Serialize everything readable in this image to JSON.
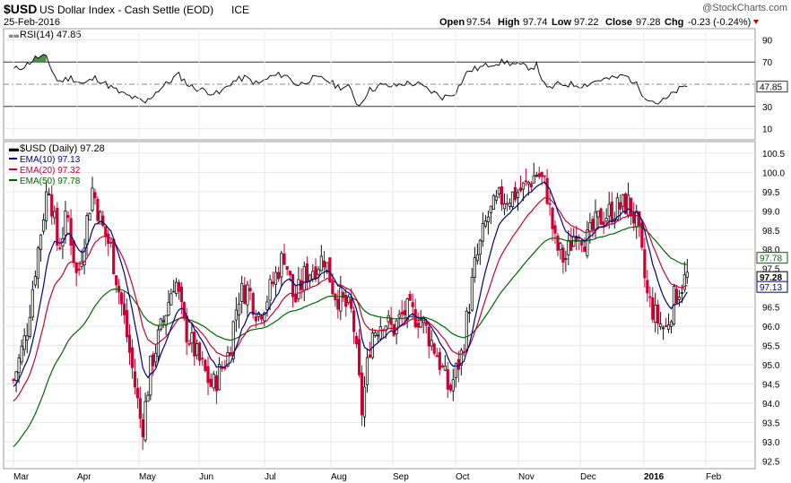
{
  "header": {
    "symbol": "$USD",
    "name": "US Dollar Index - Cash Settle (EOD)",
    "exchange": "ICE",
    "date": "25-Feb-2016",
    "watermark": "@StockCharts.com",
    "open_label": "Open",
    "open": "97.54",
    "high_label": "High",
    "high": "97.74",
    "low_label": "Low",
    "low": "97.22",
    "close_label": "Close",
    "close": "97.28",
    "chg_label": "Chg",
    "chg": "-0.23 (-0.24%)",
    "chg_color": "#cc0000"
  },
  "rsi_panel": {
    "label": "RSI(14) 47.85",
    "current": 47.85,
    "current_label": "47.85",
    "levels": [
      70,
      30
    ],
    "midline": 50,
    "ticks": [
      "90",
      "70",
      "50",
      "30",
      "10"
    ]
  },
  "price_panel": {
    "label": "$USD (Daily) 97.28",
    "legend": [
      {
        "name": "EMA(10) 97.13",
        "color": "#000080"
      },
      {
        "name": "EMA(20) 97.32",
        "color": "#cc0033"
      },
      {
        "name": "EMA(50) 97.78",
        "color": "#006600"
      }
    ],
    "markers": [
      {
        "label": "97.78",
        "value": 97.78,
        "color": "#006600"
      },
      {
        "label": "97.28",
        "value": 97.28,
        "color": "#000000"
      },
      {
        "label": "97.13",
        "value": 97.13,
        "color": "#000080"
      }
    ],
    "y_ticks": [
      "100.5",
      "100.0",
      "99.5",
      "99.0",
      "98.5",
      "98.0",
      "97.5",
      "97.0",
      "96.5",
      "96.0",
      "95.5",
      "95.0",
      "94.5",
      "94.0",
      "93.5",
      "93.0",
      "92.5"
    ]
  },
  "x_axis": {
    "labels": [
      "Mar",
      "Apr",
      "May",
      "Jun",
      "Jul",
      "Aug",
      "Sep",
      "Oct",
      "Nov",
      "Dec",
      "2016",
      "Feb"
    ]
  },
  "chart_data": {
    "type": "candlestick",
    "y_range": [
      92.3,
      100.8
    ],
    "rsi_range": [
      0,
      100
    ],
    "months": [
      "Mar",
      "Apr",
      "May",
      "Jun",
      "Jul",
      "Aug",
      "Sep",
      "Oct",
      "Nov",
      "Dec",
      "2016",
      "Feb"
    ],
    "close_path": [
      {
        "m": 0.0,
        "v": 94.6
      },
      {
        "m": 0.2,
        "v": 95.8
      },
      {
        "m": 0.35,
        "v": 97.6
      },
      {
        "m": 0.55,
        "v": 99.8
      },
      {
        "m": 0.7,
        "v": 98.0
      },
      {
        "m": 0.85,
        "v": 98.9
      },
      {
        "m": 1.0,
        "v": 97.2
      },
      {
        "m": 1.1,
        "v": 98.2
      },
      {
        "m": 1.25,
        "v": 99.6
      },
      {
        "m": 1.4,
        "v": 98.6
      },
      {
        "m": 1.55,
        "v": 98.0
      },
      {
        "m": 1.75,
        "v": 96.3
      },
      {
        "m": 1.9,
        "v": 94.8
      },
      {
        "m": 2.05,
        "v": 93.3
      },
      {
        "m": 2.2,
        "v": 95.0
      },
      {
        "m": 2.45,
        "v": 96.4
      },
      {
        "m": 2.6,
        "v": 97.3
      },
      {
        "m": 2.75,
        "v": 96.0
      },
      {
        "m": 3.0,
        "v": 95.1
      },
      {
        "m": 3.2,
        "v": 94.4
      },
      {
        "m": 3.45,
        "v": 95.3
      },
      {
        "m": 3.6,
        "v": 96.8
      },
      {
        "m": 3.75,
        "v": 97.0
      },
      {
        "m": 3.9,
        "v": 96.3
      },
      {
        "m": 4.05,
        "v": 96.8
      },
      {
        "m": 4.3,
        "v": 97.9
      },
      {
        "m": 4.45,
        "v": 96.6
      },
      {
        "m": 4.6,
        "v": 97.3
      },
      {
        "m": 4.9,
        "v": 97.8
      },
      {
        "m": 5.05,
        "v": 96.9
      },
      {
        "m": 5.2,
        "v": 96.6
      },
      {
        "m": 5.35,
        "v": 96.3
      },
      {
        "m": 5.5,
        "v": 93.8
      },
      {
        "m": 5.65,
        "v": 95.8
      },
      {
        "m": 5.85,
        "v": 96.2
      },
      {
        "m": 6.0,
        "v": 95.9
      },
      {
        "m": 6.2,
        "v": 96.4
      },
      {
        "m": 6.45,
        "v": 96.2
      },
      {
        "m": 6.7,
        "v": 95.3
      },
      {
        "m": 6.9,
        "v": 94.3
      },
      {
        "m": 7.1,
        "v": 95.3
      },
      {
        "m": 7.3,
        "v": 97.5
      },
      {
        "m": 7.5,
        "v": 98.8
      },
      {
        "m": 7.7,
        "v": 99.3
      },
      {
        "m": 7.9,
        "v": 99.4
      },
      {
        "m": 8.1,
        "v": 99.6
      },
      {
        "m": 8.3,
        "v": 100.0
      },
      {
        "m": 8.45,
        "v": 99.6
      },
      {
        "m": 8.6,
        "v": 98.1
      },
      {
        "m": 8.75,
        "v": 97.7
      },
      {
        "m": 8.95,
        "v": 98.6
      },
      {
        "m": 9.1,
        "v": 98.2
      },
      {
        "m": 9.3,
        "v": 98.8
      },
      {
        "m": 9.5,
        "v": 99.0
      },
      {
        "m": 9.75,
        "v": 99.2
      },
      {
        "m": 9.9,
        "v": 98.6
      },
      {
        "m": 10.05,
        "v": 96.8
      },
      {
        "m": 10.2,
        "v": 96.2
      },
      {
        "m": 10.35,
        "v": 95.9
      },
      {
        "m": 10.5,
        "v": 96.8
      },
      {
        "m": 10.7,
        "v": 97.3
      }
    ],
    "ema_end": {
      "ema10": 97.13,
      "ema20": 97.32,
      "ema50": 97.78
    },
    "rsi_path": [
      {
        "m": 0.0,
        "v": 63
      },
      {
        "m": 0.2,
        "v": 67
      },
      {
        "m": 0.35,
        "v": 74
      },
      {
        "m": 0.5,
        "v": 75
      },
      {
        "m": 0.7,
        "v": 52
      },
      {
        "m": 0.9,
        "v": 56
      },
      {
        "m": 1.1,
        "v": 50
      },
      {
        "m": 1.3,
        "v": 56
      },
      {
        "m": 1.5,
        "v": 49
      },
      {
        "m": 1.7,
        "v": 42
      },
      {
        "m": 1.9,
        "v": 38
      },
      {
        "m": 2.1,
        "v": 33
      },
      {
        "m": 2.3,
        "v": 44
      },
      {
        "m": 2.5,
        "v": 52
      },
      {
        "m": 2.65,
        "v": 59
      },
      {
        "m": 2.85,
        "v": 48
      },
      {
        "m": 3.1,
        "v": 44
      },
      {
        "m": 3.3,
        "v": 41
      },
      {
        "m": 3.5,
        "v": 52
      },
      {
        "m": 3.7,
        "v": 56
      },
      {
        "m": 3.9,
        "v": 50
      },
      {
        "m": 4.1,
        "v": 57
      },
      {
        "m": 4.3,
        "v": 59
      },
      {
        "m": 4.5,
        "v": 49
      },
      {
        "m": 4.7,
        "v": 55
      },
      {
        "m": 4.9,
        "v": 55
      },
      {
        "m": 5.1,
        "v": 48
      },
      {
        "m": 5.3,
        "v": 47
      },
      {
        "m": 5.45,
        "v": 30
      },
      {
        "m": 5.6,
        "v": 44
      },
      {
        "m": 5.8,
        "v": 49
      },
      {
        "m": 6.0,
        "v": 48
      },
      {
        "m": 6.2,
        "v": 51
      },
      {
        "m": 6.4,
        "v": 50
      },
      {
        "m": 6.6,
        "v": 44
      },
      {
        "m": 6.8,
        "v": 38
      },
      {
        "m": 7.0,
        "v": 43
      },
      {
        "m": 7.2,
        "v": 62
      },
      {
        "m": 7.4,
        "v": 65
      },
      {
        "m": 7.6,
        "v": 69
      },
      {
        "m": 7.8,
        "v": 70
      },
      {
        "m": 8.0,
        "v": 67
      },
      {
        "m": 8.2,
        "v": 65
      },
      {
        "m": 8.3,
        "v": 67
      },
      {
        "m": 8.45,
        "v": 45
      },
      {
        "m": 8.65,
        "v": 50
      },
      {
        "m": 8.85,
        "v": 50
      },
      {
        "m": 9.05,
        "v": 49
      },
      {
        "m": 9.3,
        "v": 54
      },
      {
        "m": 9.5,
        "v": 55
      },
      {
        "m": 9.7,
        "v": 58
      },
      {
        "m": 9.85,
        "v": 52
      },
      {
        "m": 10.0,
        "v": 40
      },
      {
        "m": 10.2,
        "v": 33
      },
      {
        "m": 10.35,
        "v": 36
      },
      {
        "m": 10.55,
        "v": 45
      },
      {
        "m": 10.7,
        "v": 47.85
      }
    ]
  }
}
